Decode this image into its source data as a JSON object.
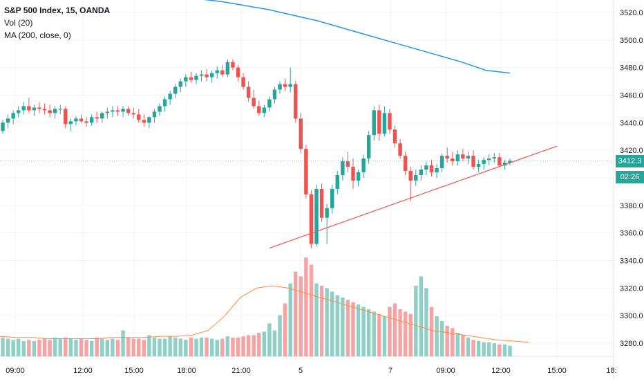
{
  "legend": {
    "title": "S&P 500 Index, 15, OANDA",
    "vol": "Vol (20)",
    "ma": "MA (200, close, 0)"
  },
  "price_tag": {
    "last": "3412.3",
    "countdown": "02:26"
  },
  "colors": {
    "up": "#26a69a",
    "down": "#ef5350",
    "vol_up": "#8fd0c6",
    "vol_down": "#f5a3a3",
    "ma200": "#2196f3",
    "vol_ma": "#ff8a3d",
    "trendline": "#ef5350",
    "grid": "#f0f3fa",
    "last_line": "#26a69a"
  },
  "chart_data": {
    "type": "candlestick",
    "title": "S&P 500 Index, 15, OANDA",
    "y_ticks": [
      "3520.0",
      "3500.0",
      "3480.0",
      "3460.0",
      "3440.0",
      "3420.0",
      "3400.0",
      "3380.0",
      "3360.0",
      "3340.0",
      "3320.0",
      "3300.0",
      "3280.0"
    ],
    "x_ticks": [
      "09:00",
      "12:00",
      "15:00",
      "18:00",
      "21:00",
      "5",
      "7",
      "09:00",
      "12:00",
      "15:00",
      "18:"
    ],
    "ylim": [
      3270,
      3525
    ],
    "grid": true,
    "last_price": 3412.3,
    "candles": [
      [
        3434,
        3442,
        3432,
        3440
      ],
      [
        3440,
        3446,
        3436,
        3443
      ],
      [
        3443,
        3449,
        3439,
        3447
      ],
      [
        3447,
        3452,
        3444,
        3449
      ],
      [
        3449,
        3455,
        3446,
        3452
      ],
      [
        3452,
        3458,
        3447,
        3449
      ],
      [
        3449,
        3453,
        3445,
        3451
      ],
      [
        3451,
        3455,
        3447,
        3450
      ],
      [
        3450,
        3454,
        3446,
        3449
      ],
      [
        3449,
        3453,
        3444,
        3447
      ],
      [
        3447,
        3452,
        3443,
        3450
      ],
      [
        3450,
        3453,
        3446,
        3450
      ],
      [
        3450,
        3452,
        3436,
        3439
      ],
      [
        3439,
        3443,
        3434,
        3441
      ],
      [
        3441,
        3445,
        3438,
        3443
      ],
      [
        3443,
        3446,
        3440,
        3441
      ],
      [
        3441,
        3444,
        3437,
        3440
      ],
      [
        3440,
        3446,
        3438,
        3444
      ],
      [
        3444,
        3448,
        3440,
        3443
      ],
      [
        3443,
        3448,
        3440,
        3447
      ],
      [
        3447,
        3451,
        3443,
        3448
      ],
      [
        3448,
        3452,
        3444,
        3449
      ],
      [
        3449,
        3452,
        3445,
        3448
      ],
      [
        3448,
        3452,
        3444,
        3450
      ],
      [
        3450,
        3452,
        3445,
        3447
      ],
      [
        3447,
        3451,
        3443,
        3446
      ],
      [
        3446,
        3450,
        3440,
        3442
      ],
      [
        3442,
        3446,
        3437,
        3440
      ],
      [
        3440,
        3445,
        3436,
        3444
      ],
      [
        3444,
        3450,
        3440,
        3448
      ],
      [
        3448,
        3454,
        3445,
        3452
      ],
      [
        3452,
        3459,
        3448,
        3457
      ],
      [
        3457,
        3463,
        3453,
        3461
      ],
      [
        3461,
        3468,
        3458,
        3466
      ],
      [
        3466,
        3472,
        3462,
        3470
      ],
      [
        3470,
        3475,
        3466,
        3473
      ],
      [
        3473,
        3477,
        3469,
        3471
      ],
      [
        3471,
        3476,
        3468,
        3474
      ],
      [
        3474,
        3478,
        3470,
        3475
      ],
      [
        3475,
        3479,
        3470,
        3473
      ],
      [
        3473,
        3478,
        3469,
        3476
      ],
      [
        3476,
        3481,
        3472,
        3478
      ],
      [
        3478,
        3482,
        3473,
        3475
      ],
      [
        3475,
        3486,
        3473,
        3484
      ],
      [
        3484,
        3486,
        3478,
        3480
      ],
      [
        3480,
        3482,
        3470,
        3473
      ],
      [
        3473,
        3476,
        3464,
        3466
      ],
      [
        3466,
        3470,
        3455,
        3458
      ],
      [
        3458,
        3464,
        3450,
        3452
      ],
      [
        3452,
        3456,
        3445,
        3447
      ],
      [
        3447,
        3453,
        3444,
        3451
      ],
      [
        3451,
        3459,
        3448,
        3457
      ],
      [
        3457,
        3466,
        3454,
        3464
      ],
      [
        3464,
        3470,
        3461,
        3468
      ],
      [
        3468,
        3472,
        3463,
        3466
      ],
      [
        3466,
        3480,
        3462,
        3468
      ],
      [
        3468,
        3470,
        3440,
        3443
      ],
      [
        3443,
        3447,
        3418,
        3421
      ],
      [
        3421,
        3424,
        3385,
        3388
      ],
      [
        3388,
        3391,
        3349,
        3352
      ],
      [
        3352,
        3395,
        3350,
        3392
      ],
      [
        3392,
        3396,
        3368,
        3371
      ],
      [
        3371,
        3381,
        3352,
        3378
      ],
      [
        3378,
        3395,
        3374,
        3392
      ],
      [
        3392,
        3405,
        3388,
        3402
      ],
      [
        3402,
        3415,
        3398,
        3412
      ],
      [
        3412,
        3419,
        3404,
        3408
      ],
      [
        3408,
        3414,
        3392,
        3398
      ],
      [
        3398,
        3406,
        3394,
        3404
      ],
      [
        3404,
        3417,
        3400,
        3414
      ],
      [
        3414,
        3434,
        3410,
        3431
      ],
      [
        3431,
        3452,
        3427,
        3449
      ],
      [
        3449,
        3453,
        3427,
        3432
      ],
      [
        3432,
        3452,
        3430,
        3447
      ],
      [
        3447,
        3450,
        3432,
        3435
      ],
      [
        3435,
        3438,
        3422,
        3425
      ],
      [
        3425,
        3428,
        3414,
        3416
      ],
      [
        3416,
        3419,
        3402,
        3405
      ],
      [
        3405,
        3408,
        3383,
        3398
      ],
      [
        3398,
        3406,
        3394,
        3402
      ],
      [
        3402,
        3409,
        3398,
        3406
      ],
      [
        3406,
        3412,
        3402,
        3409
      ],
      [
        3409,
        3413,
        3401,
        3404
      ],
      [
        3404,
        3410,
        3400,
        3407
      ],
      [
        3407,
        3418,
        3404,
        3416
      ],
      [
        3416,
        3422,
        3411,
        3414
      ],
      [
        3414,
        3419,
        3409,
        3412
      ],
      [
        3412,
        3420,
        3409,
        3417
      ],
      [
        3417,
        3421,
        3412,
        3414
      ],
      [
        3414,
        3419,
        3410,
        3416
      ],
      [
        3416,
        3420,
        3406,
        3408
      ],
      [
        3408,
        3413,
        3404,
        3410
      ],
      [
        3410,
        3415,
        3406,
        3413
      ],
      [
        3413,
        3417,
        3409,
        3414
      ],
      [
        3414,
        3418,
        3411,
        3415
      ],
      [
        3415,
        3418,
        3408,
        3409
      ],
      [
        3409,
        3413,
        3406,
        3411
      ],
      [
        3411,
        3414,
        3409,
        3412.3
      ]
    ],
    "volume": [
      16,
      15,
      14,
      15,
      13,
      14,
      13,
      14,
      15,
      14,
      16,
      15,
      16,
      15,
      14,
      15,
      14,
      13,
      16,
      15,
      14,
      15,
      14,
      22,
      16,
      15,
      15,
      14,
      18,
      16,
      15,
      15,
      17,
      16,
      15,
      14,
      16,
      15,
      16,
      16,
      15,
      14,
      15,
      17,
      16,
      16,
      17,
      18,
      18,
      20,
      21,
      28,
      22,
      35,
      45,
      62,
      72,
      68,
      84,
      78,
      62,
      60,
      58,
      55,
      52,
      50,
      48,
      46,
      44,
      42,
      40,
      38,
      36,
      34,
      42,
      45,
      40,
      38,
      36,
      60,
      68,
      58,
      42,
      34,
      30,
      26,
      24,
      20,
      18,
      16,
      14,
      13,
      12,
      12,
      11,
      10,
      10,
      9
    ],
    "ma200": [
      3535,
      3534,
      3532,
      3530,
      3528,
      3525,
      3522,
      3518,
      3514,
      3509,
      3504,
      3499,
      3494,
      3489,
      3484,
      3478,
      3476
    ],
    "vol_ma": [
      17,
      16,
      16,
      15,
      15,
      15,
      15,
      16,
      16,
      16,
      17,
      17,
      18,
      22,
      34,
      50,
      58,
      60,
      58,
      54,
      50,
      46,
      42,
      38,
      34,
      30,
      26,
      22,
      20,
      18,
      16,
      14,
      13,
      12
    ],
    "trendline": [
      [
        3349,
        3423
      ]
    ]
  }
}
